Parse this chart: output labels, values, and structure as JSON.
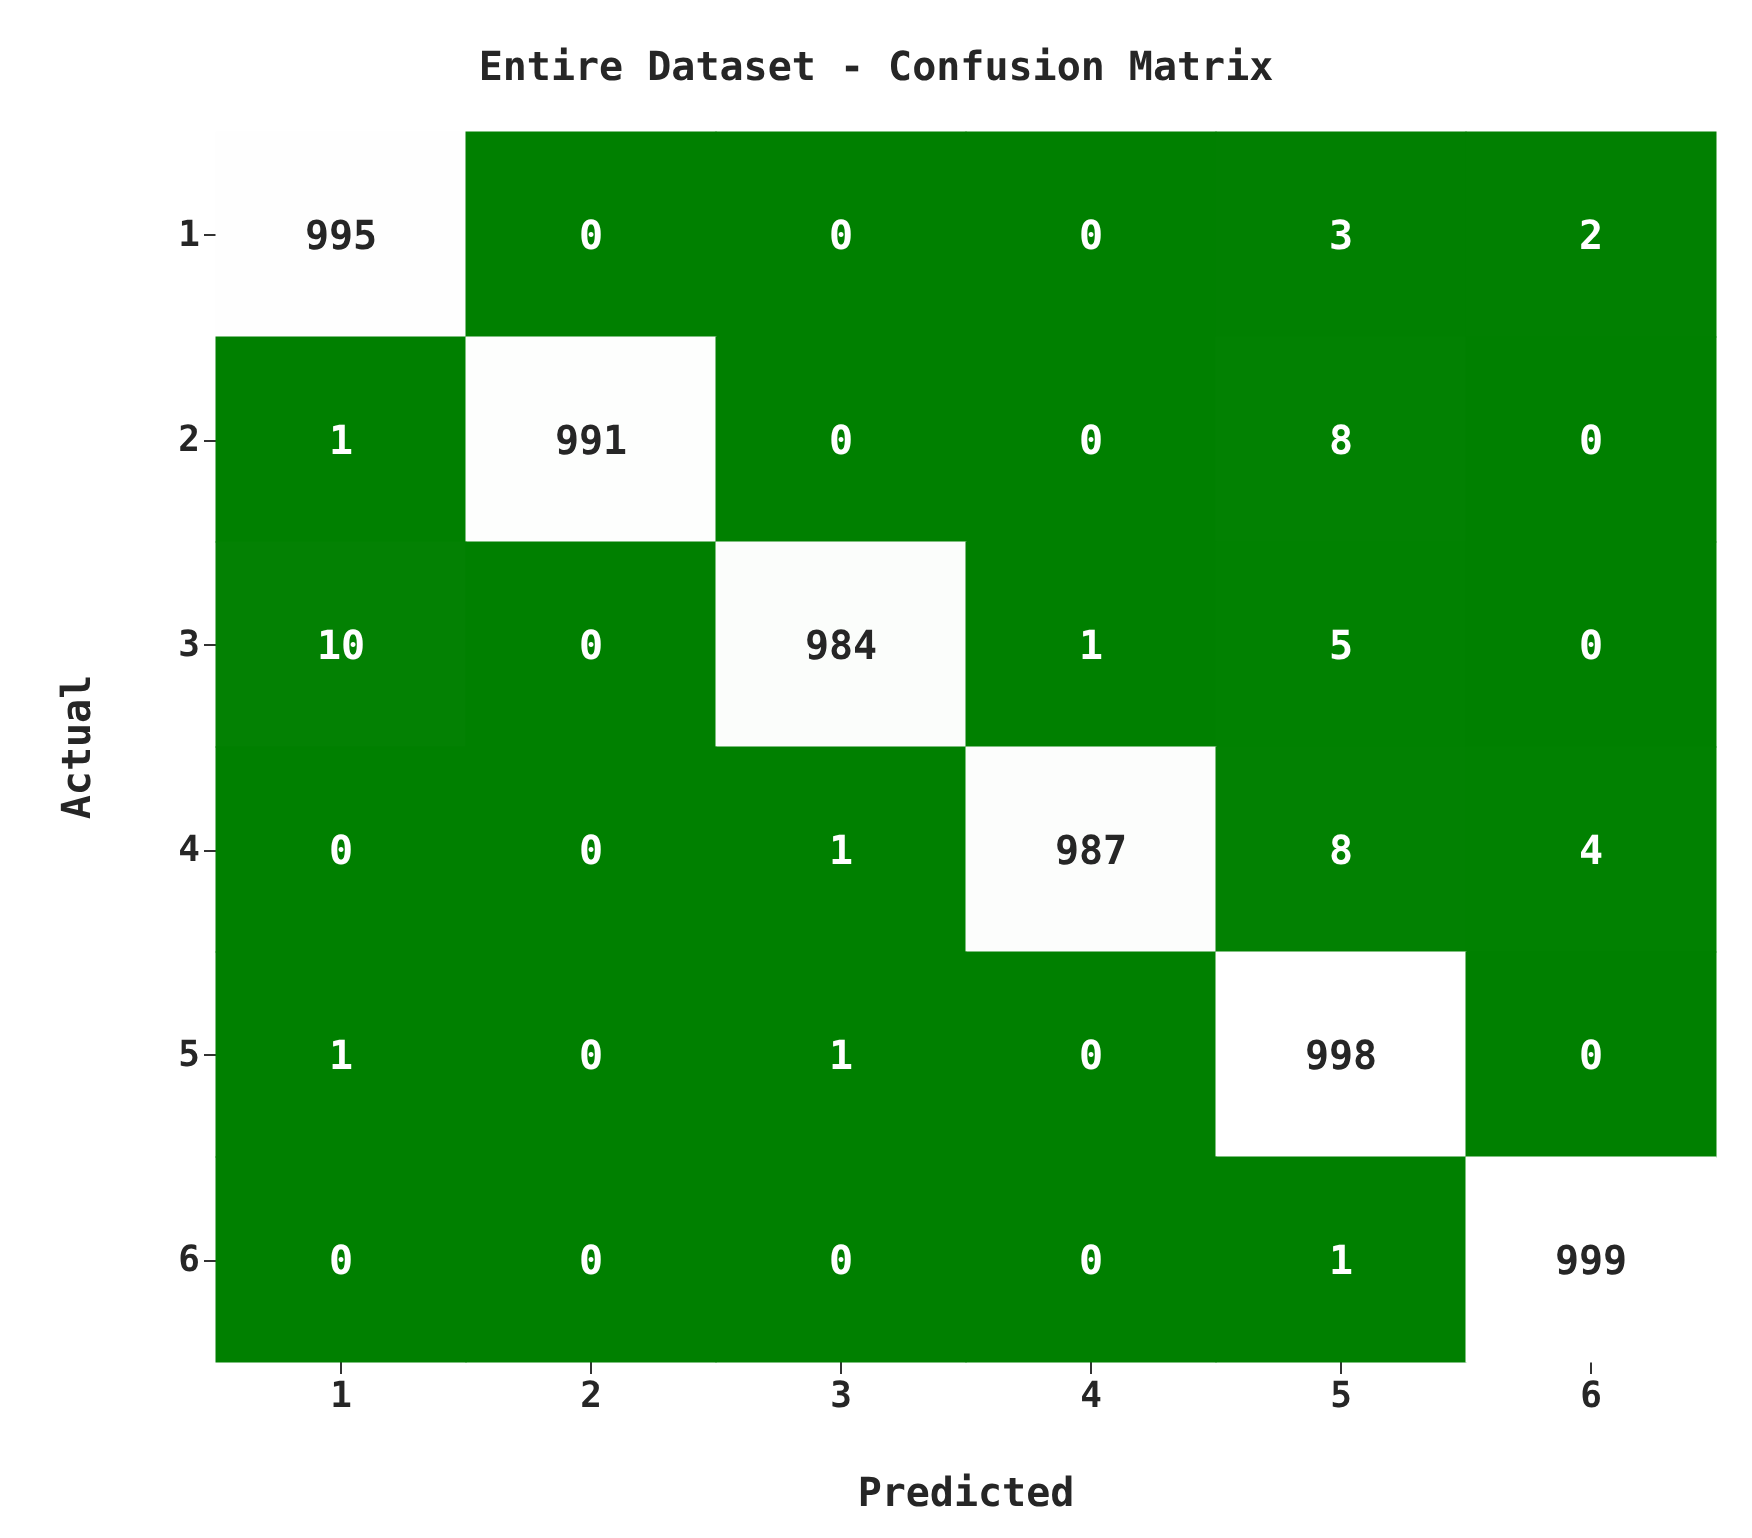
{
  "chart_data": {
    "type": "heatmap",
    "title": "Entire Dataset - Confusion Matrix",
    "xlabel": "Predicted",
    "ylabel": "Actual",
    "categories": [
      "1",
      "2",
      "3",
      "4",
      "5",
      "6"
    ],
    "y_categories": [
      "1",
      "2",
      "3",
      "4",
      "5",
      "6"
    ],
    "cells": [
      [
        995,
        0,
        0,
        0,
        3,
        2
      ],
      [
        1,
        991,
        0,
        0,
        8,
        0
      ],
      [
        10,
        0,
        984,
        1,
        5,
        0
      ],
      [
        0,
        0,
        1,
        987,
        8,
        4
      ],
      [
        1,
        0,
        1,
        0,
        998,
        0
      ],
      [
        0,
        0,
        0,
        0,
        1,
        999
      ]
    ],
    "data_labels": true
  }
}
